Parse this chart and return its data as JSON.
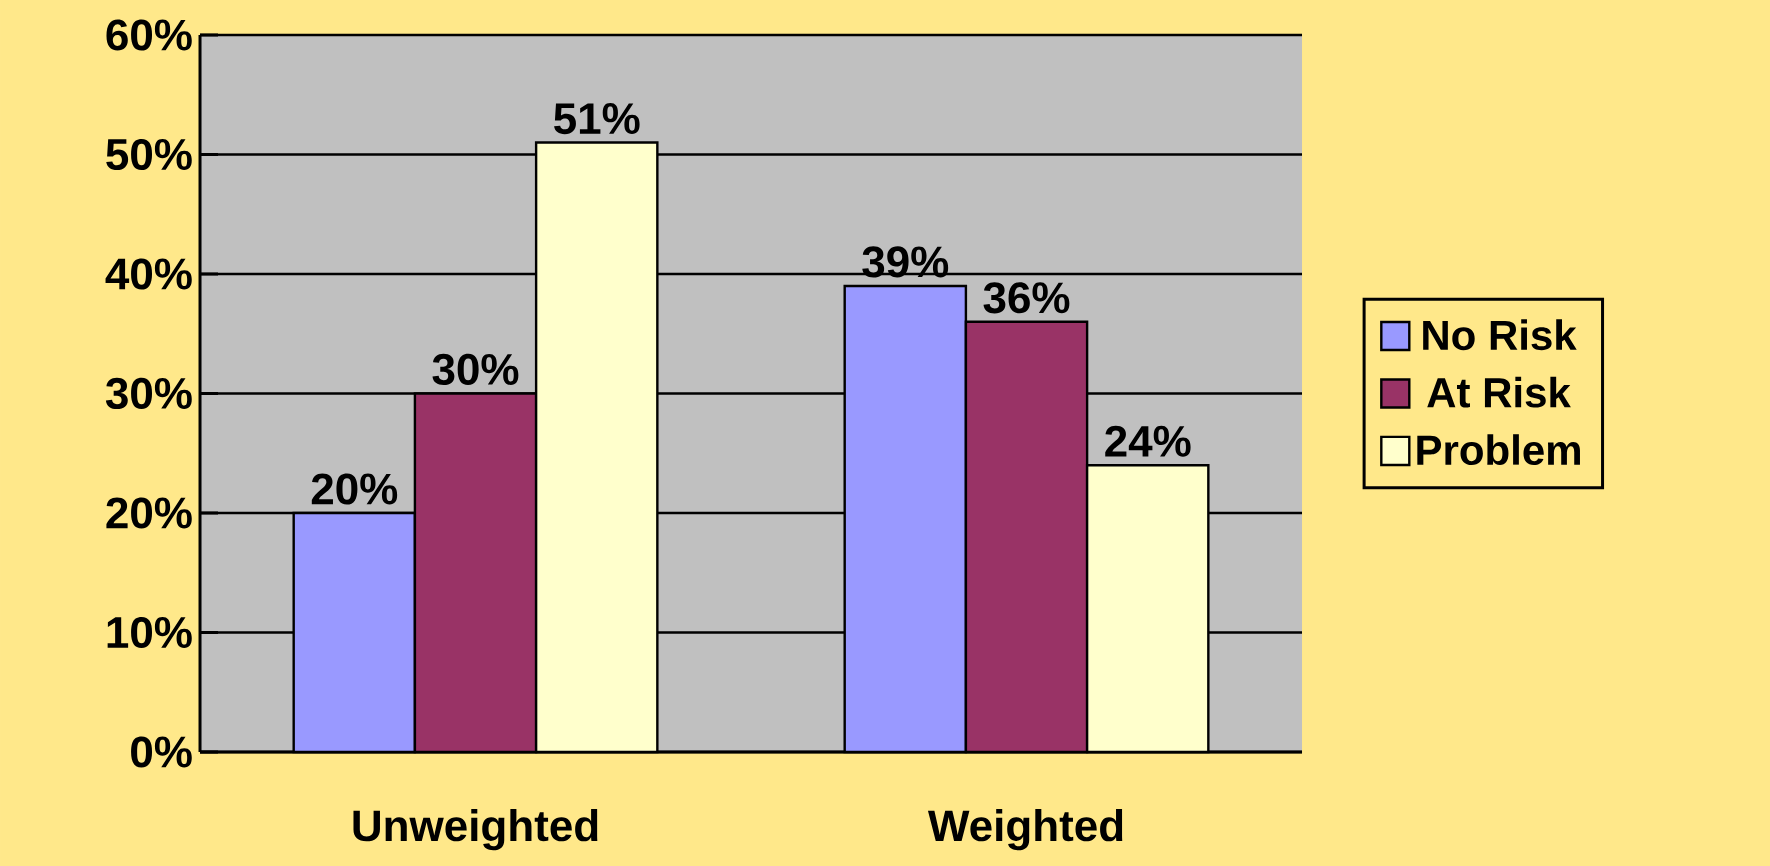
{
  "chart_data": {
    "type": "bar",
    "categories": [
      "Unweighted",
      "Weighted"
    ],
    "series": [
      {
        "name": "No Risk",
        "color": "#9999ff",
        "values": [
          20,
          39
        ],
        "value_labels": [
          "20%",
          "39%"
        ]
      },
      {
        "name": "At Risk",
        "color": "#993366",
        "values": [
          30,
          36
        ],
        "value_labels": [
          "30%",
          "36%"
        ]
      },
      {
        "name": "Problem",
        "color": "#ffffcc",
        "values": [
          51,
          24
        ],
        "value_labels": [
          "51%",
          "24%"
        ]
      }
    ],
    "ylim": [
      0,
      60
    ],
    "yticks": [
      {
        "value": 0,
        "label": "0%"
      },
      {
        "value": 10,
        "label": "10%"
      },
      {
        "value": 20,
        "label": "20%"
      },
      {
        "value": 30,
        "label": "30%"
      },
      {
        "value": 40,
        "label": "40%"
      },
      {
        "value": 50,
        "label": "50%"
      },
      {
        "value": 60,
        "label": "60%"
      }
    ],
    "grid": "y",
    "legend": "right"
  }
}
